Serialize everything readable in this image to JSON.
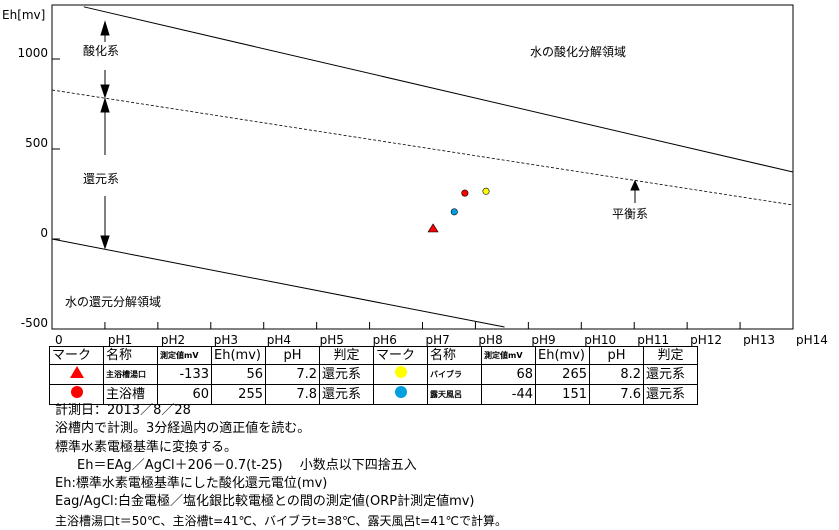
{
  "chart_data": {
    "type": "scatter",
    "ylabel": "Eh[mv]",
    "xlim": [
      0,
      14
    ],
    "ylim": [
      -500,
      1300
    ],
    "x_ticks": [
      "0",
      "pH1",
      "pH2",
      "pH3",
      "pH4",
      "pH5",
      "pH6",
      "pH7",
      "pH8",
      "pH9",
      "pH10",
      "pH11",
      "pH12",
      "pH13",
      "pH14"
    ],
    "y_ticks": [
      {
        "value": 1000,
        "label": "1000"
      },
      {
        "value": 500,
        "label": "500"
      },
      {
        "value": 0,
        "label": "0"
      },
      {
        "value": -500,
        "label": "-500"
      }
    ],
    "lines": [
      {
        "name": "oxidation-limit",
        "style": "solid",
        "points": [
          [
            0.6,
            1290
          ],
          [
            14,
            372
          ]
        ]
      },
      {
        "name": "equilibrium",
        "style": "dashed",
        "points": [
          [
            0,
            828
          ],
          [
            14,
            189
          ]
        ]
      },
      {
        "name": "reduction-limit",
        "style": "solid",
        "points": [
          [
            0,
            0
          ],
          [
            8.55,
            -489
          ]
        ]
      }
    ],
    "annotations": {
      "oxidation_system": "酸化系",
      "reduction_system": "還元系",
      "equilibrium_system": "平衡系",
      "water_oxidation_region": "水の酸化分解領域",
      "water_reduction_region": "水の還元分解領域"
    },
    "points": [
      {
        "name": "主浴槽湯口",
        "pH": 7.2,
        "Eh": 56,
        "marker": "triangle",
        "color": "#ff0000"
      },
      {
        "name": "主浴槽",
        "pH": 7.8,
        "Eh": 255,
        "marker": "circle",
        "color": "#ff0000"
      },
      {
        "name": "バイブラ",
        "pH": 8.2,
        "Eh": 265,
        "marker": "circle",
        "color": "#ffff00"
      },
      {
        "name": "露天風呂",
        "pH": 7.6,
        "Eh": 151,
        "marker": "circle",
        "color": "#00a0e0"
      }
    ]
  },
  "table": {
    "headers": [
      "マーク",
      "名称",
      "測定値mV",
      "Eh(mv)",
      "pH",
      "判定",
      "マーク",
      "名称",
      "測定値mV",
      "Eh(mv)",
      "pH",
      "判定"
    ],
    "rows": [
      {
        "left": {
          "name": "主浴槽湯口",
          "mv": "-133",
          "eh": "56",
          "ph": "7.2",
          "judge": "還元系"
        },
        "right": {
          "name": "バイブラ",
          "mv": "68",
          "eh": "265",
          "ph": "8.2",
          "judge": "還元系"
        }
      },
      {
        "left": {
          "name": "主浴槽",
          "mv": "60",
          "eh": "255",
          "ph": "7.8",
          "judge": "還元系"
        },
        "right": {
          "name": "露天風呂",
          "mv": "-44",
          "eh": "151",
          "ph": "7.6",
          "judge": "還元系"
        }
      }
    ]
  },
  "notes": [
    "計測日：2013／8／28",
    "浴槽内で計測。3分経過内の適正値を読む。",
    "標準水素電極基準に変換する。",
    "Eh＝EAg／AgCl＋206－0.7(t-25)　 小数点以下四捨五入",
    "Eh:標準水素電極基準にした酸化還元電位(mv)",
    "Eag/AgCl:白金電極／塩化銀比較電極との間の測定値(ORP計測定値mv)",
    "主浴槽湯口t＝50℃、主浴槽t=41℃、バイブラt=38℃、露天風呂t=41℃で計算。"
  ]
}
